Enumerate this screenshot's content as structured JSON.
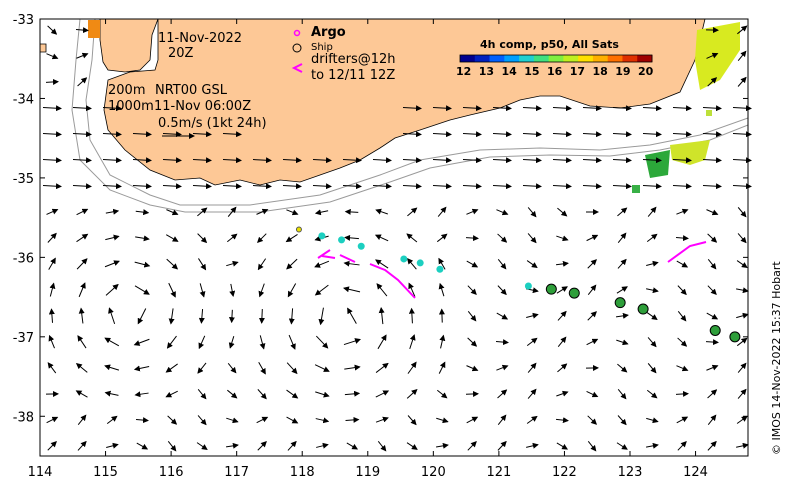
{
  "chart_data": {
    "type": "map",
    "xlim": [
      114,
      124.8
    ],
    "ylim": [
      -38.5,
      -33
    ],
    "xticks": [
      "114",
      "115",
      "116",
      "117",
      "118",
      "119",
      "120",
      "121",
      "122",
      "123",
      "124"
    ],
    "yticks": [
      "-33",
      "-34",
      "-35",
      "-36",
      "-37",
      "-38"
    ],
    "colorbar": {
      "title": "4h comp, p50, All Sats",
      "labels": [
        "12",
        "13",
        "14",
        "15",
        "16",
        "17",
        "18",
        "19",
        "20"
      ]
    },
    "argo_floats": [
      {
        "lon": 117.95,
        "lat": -35.65
      }
    ],
    "ships": [
      {
        "lon": 121.8,
        "lat": -36.4
      },
      {
        "lon": 122.15,
        "lat": -36.45
      },
      {
        "lon": 122.85,
        "lat": -36.57
      },
      {
        "lon": 123.2,
        "lat": -36.65
      },
      {
        "lon": 124.3,
        "lat": -36.92
      },
      {
        "lon": 124.6,
        "lat": -37.0
      }
    ],
    "drifters": [
      {
        "lon": 118.3,
        "lat": -35.73
      },
      {
        "lon": 118.6,
        "lat": -35.78
      },
      {
        "lon": 118.9,
        "lat": -35.86
      },
      {
        "lon": 119.55,
        "lat": -36.02
      },
      {
        "lon": 119.8,
        "lat": -36.07
      },
      {
        "lon": 120.1,
        "lat": -36.15
      },
      {
        "lon": 121.45,
        "lat": -36.36
      }
    ]
  },
  "annotations": {
    "date": "11-Nov-2022",
    "hour": "20Z",
    "depth1": "200m",
    "product": "NRT00 GSL",
    "depth2": "1000m",
    "time": "11-Nov 06:00Z",
    "scale": "0.5m/s (1kt 24h)",
    "argo_label": "Argo",
    "ship_label": "Ship",
    "drifters_label1": "drifters@12h",
    "drifters_label2": "to 12/11 12Z"
  },
  "credit": "© IMOS 14-Nov-2022 15:37 Hobart",
  "colors": {
    "land": "#fdc896",
    "argo": "#ff00ff",
    "drifter": "#ff00ff",
    "ship": "#2e9e3a",
    "float": "#1ccfc0"
  }
}
